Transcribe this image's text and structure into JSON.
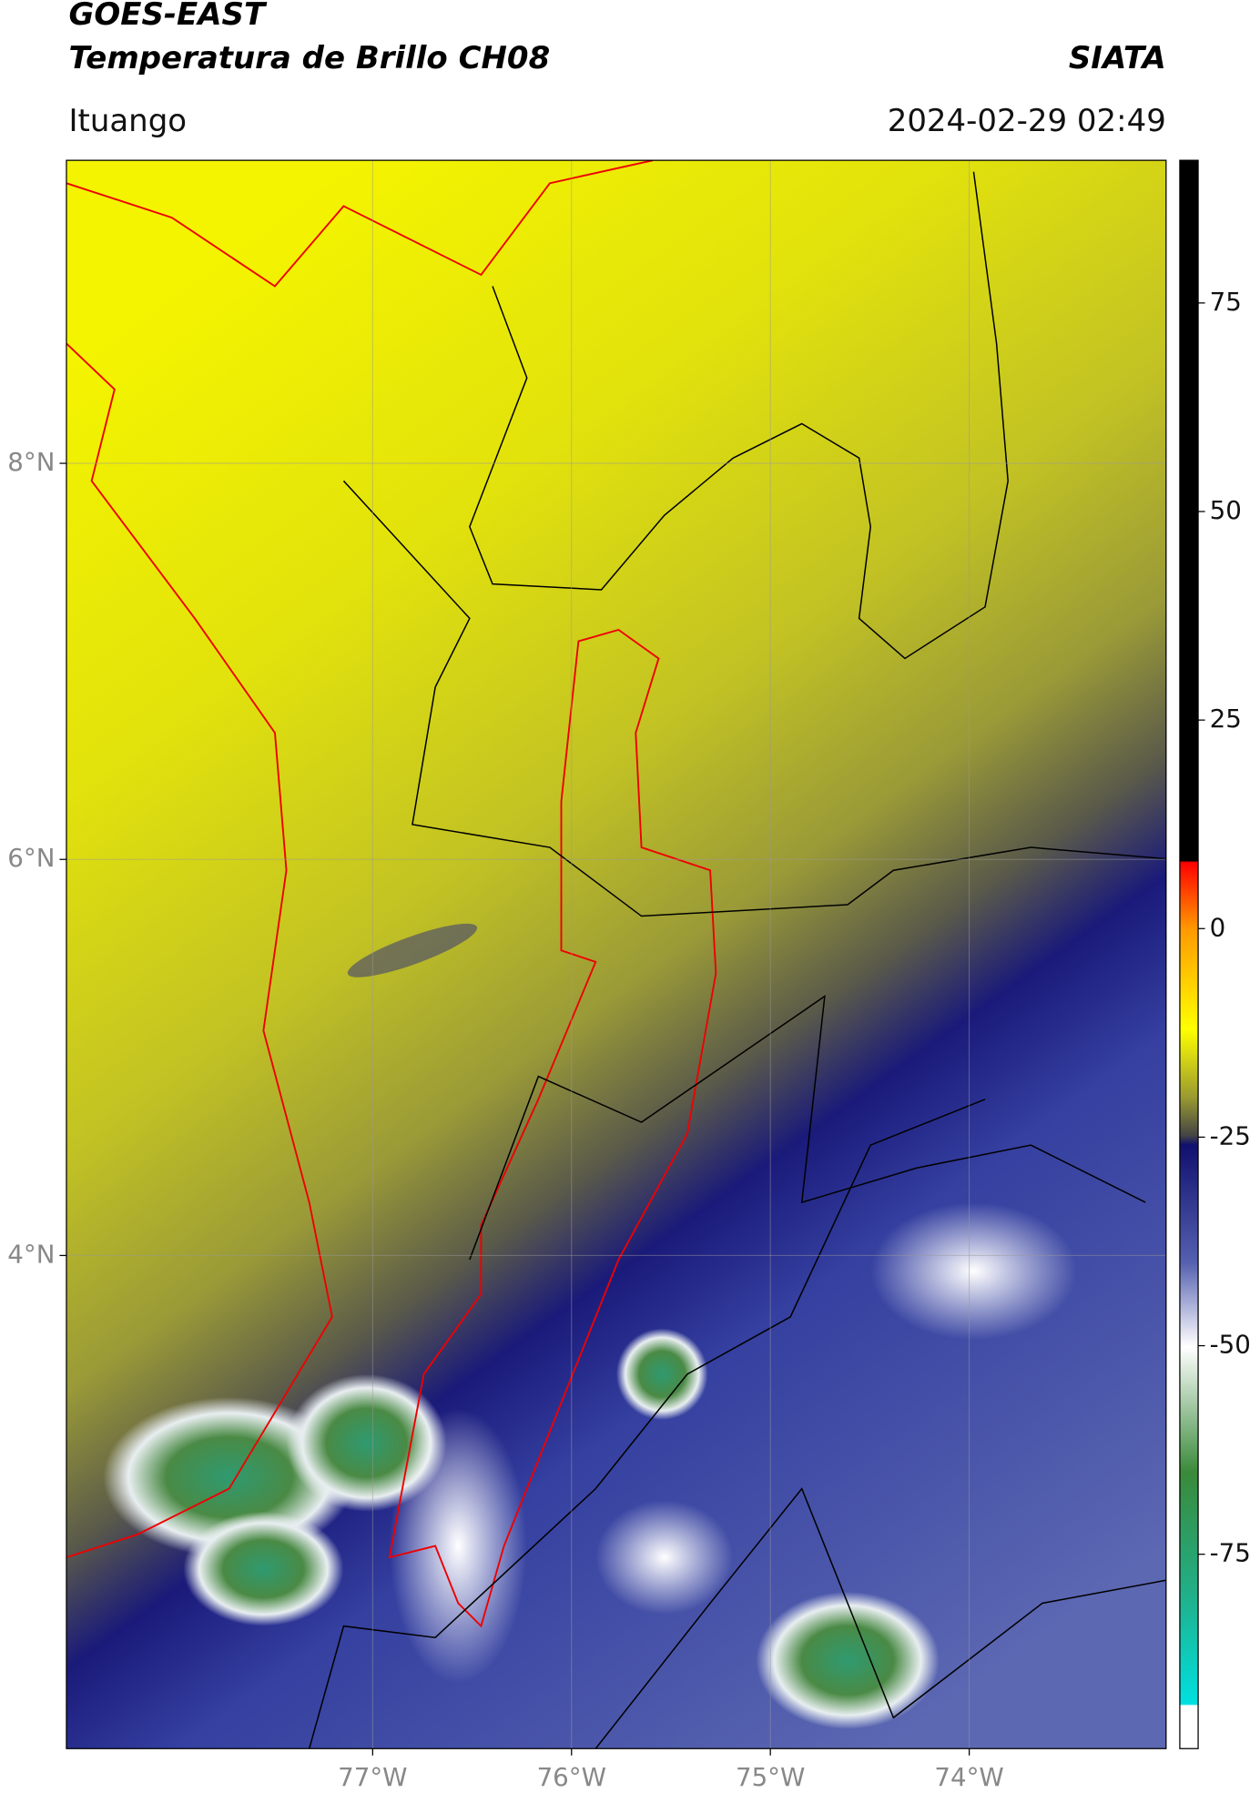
{
  "header": {
    "satellite": "GOES-EAST",
    "product": "Temperatura de Brillo CH08",
    "agency": "SIATA",
    "location": "Ituango",
    "datetime": "2024-02-29 02:49"
  },
  "map": {
    "xlim": [
      -78.54,
      -73.01
    ],
    "ylim": [
      1.51,
      9.53
    ],
    "xticks": [
      {
        "value": -77,
        "label": "77°W"
      },
      {
        "value": -76,
        "label": "76°W"
      },
      {
        "value": -75,
        "label": "75°W"
      },
      {
        "value": -74,
        "label": "74°W"
      }
    ],
    "yticks": [
      {
        "value": 4,
        "label": "4°N"
      },
      {
        "value": 6,
        "label": "6°N"
      },
      {
        "value": 8,
        "label": "8°N"
      }
    ]
  },
  "colorbar": {
    "clim": [
      -98.3,
      92.1
    ],
    "ticks": [
      -75,
      -50,
      -25,
      0,
      25,
      50,
      75
    ]
  }
}
